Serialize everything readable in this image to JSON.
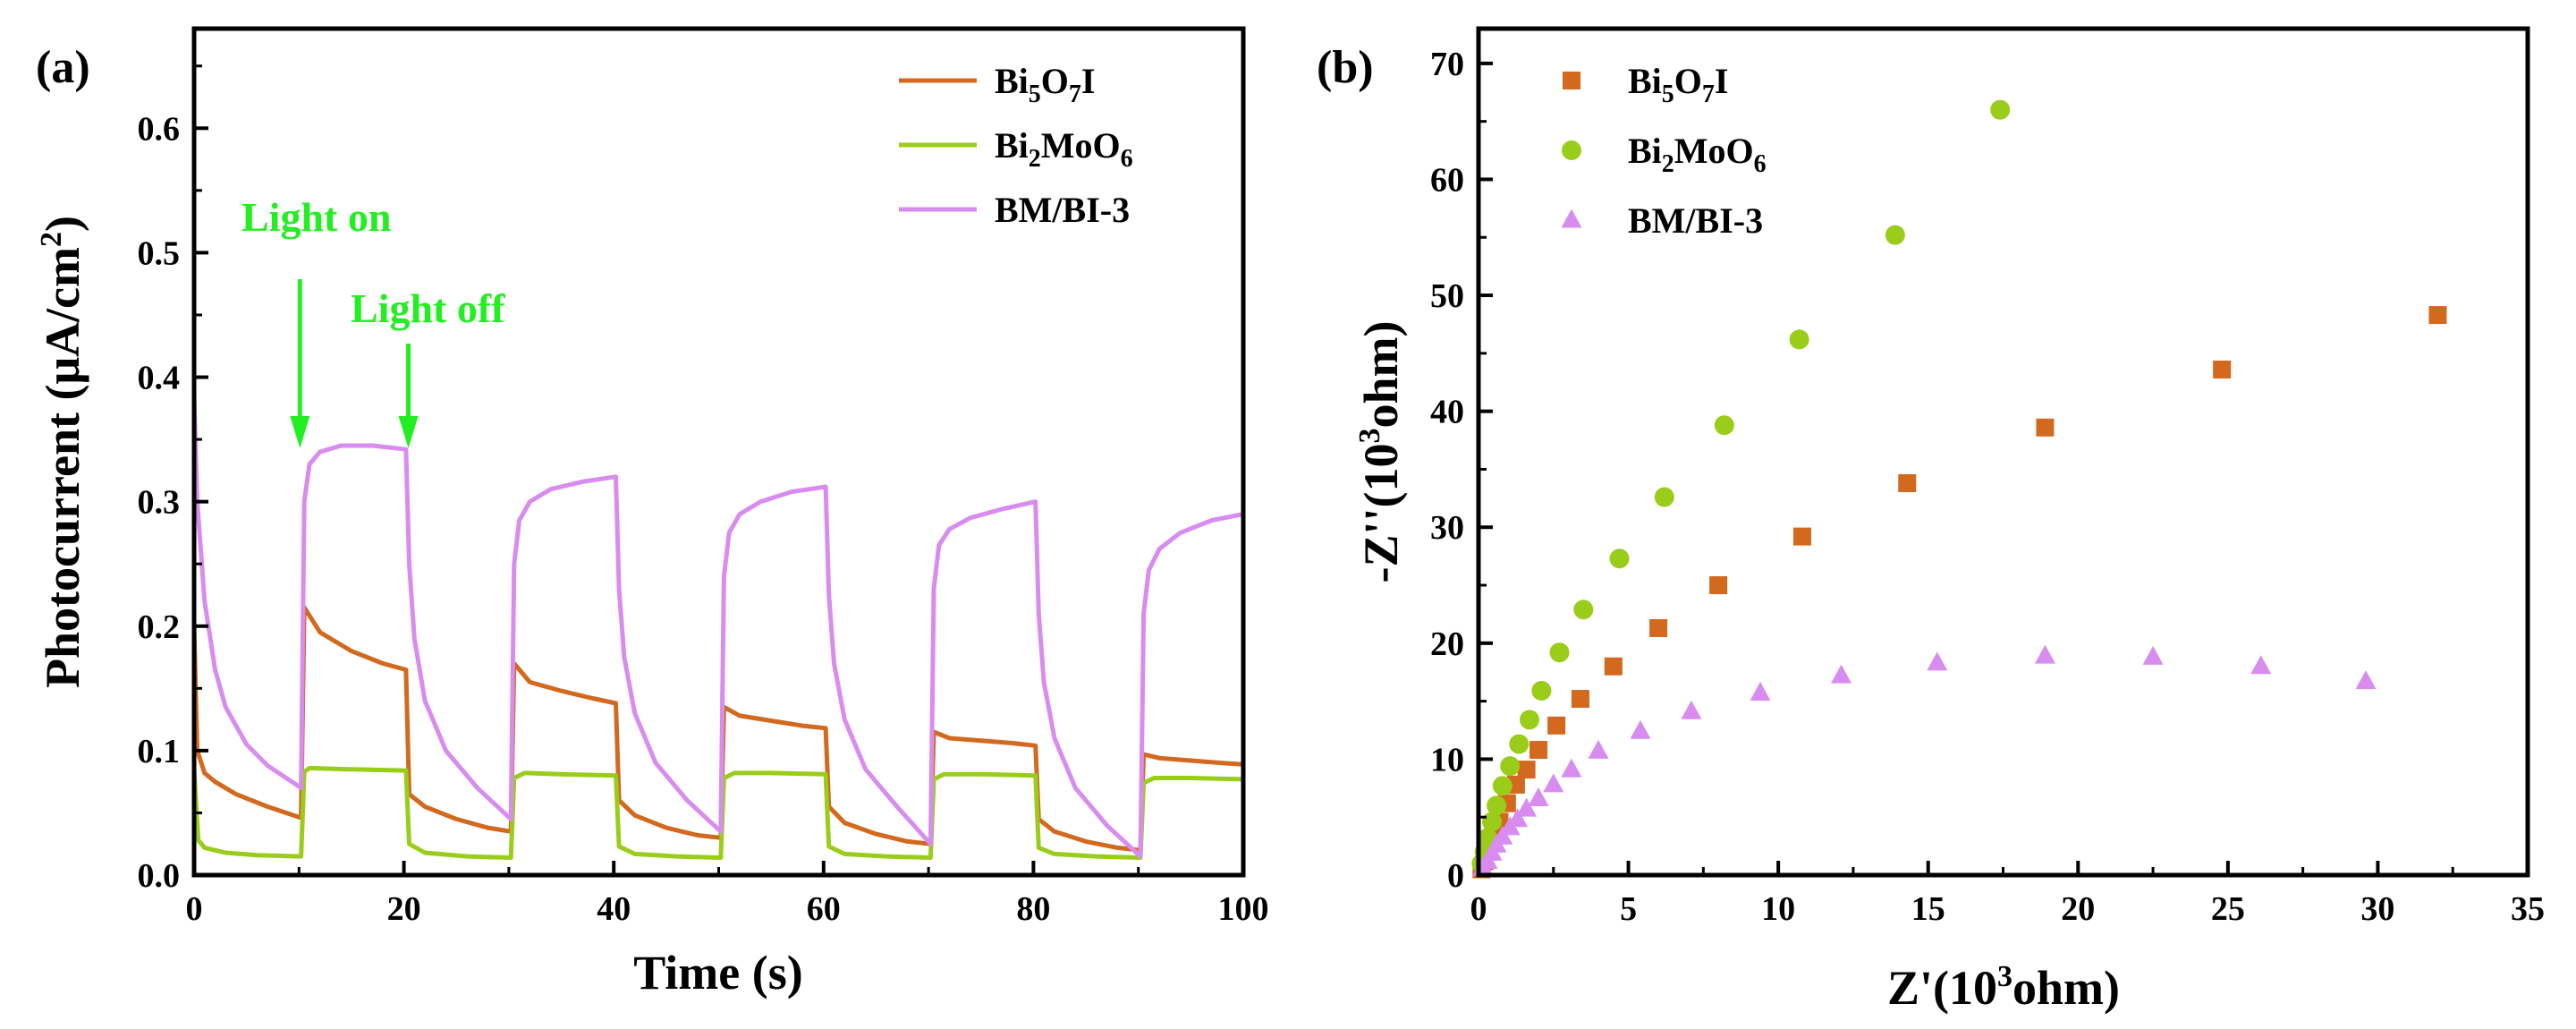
{
  "colors": {
    "bi5o7i": "#d2691e",
    "bi2moo6": "#9acd1a",
    "bmbi3": "#d88cf0",
    "annotation": "#22ee22",
    "axis": "#000000"
  },
  "chart_data": [
    {
      "panel_label": "(a)",
      "type": "line",
      "title": "",
      "xlabel": "Time (s)",
      "ylabel": "Photocurrent (μA/cm",
      "ylabel_sup": "2",
      "ylabel_close": ")",
      "xlim": [
        0,
        100
      ],
      "ylim": [
        0,
        0.68
      ],
      "xticks": [
        "0",
        "20",
        "40",
        "60",
        "80",
        "100"
      ],
      "yticks": [
        "0.0",
        "0.1",
        "0.2",
        "0.3",
        "0.4",
        "0.5",
        "0.6"
      ],
      "legend_position": "top-right",
      "annotations": [
        {
          "text": "Light on",
          "arrow_x": 10,
          "arrow_y": 0.34
        },
        {
          "text": "Light off",
          "arrow_x": 20,
          "arrow_y": 0.34
        }
      ],
      "series": [
        {
          "name": "Bi5O7I",
          "legend": {
            "base": "Bi",
            "sub1": "5",
            "mid": "O",
            "sub2": "7",
            "tail": "I"
          },
          "color_key": "bi5o7i",
          "points": [
            [
              0,
              0.2
            ],
            [
              0.3,
              0.1
            ],
            [
              1,
              0.082
            ],
            [
              2,
              0.075
            ],
            [
              4,
              0.065
            ],
            [
              7,
              0.055
            ],
            [
              10.2,
              0.046
            ],
            [
              10.5,
              0.215
            ],
            [
              12,
              0.195
            ],
            [
              15,
              0.18
            ],
            [
              18,
              0.17
            ],
            [
              20.2,
              0.165
            ],
            [
              20.5,
              0.065
            ],
            [
              22,
              0.055
            ],
            [
              25,
              0.045
            ],
            [
              28,
              0.038
            ],
            [
              30.2,
              0.035
            ],
            [
              30.5,
              0.17
            ],
            [
              32,
              0.155
            ],
            [
              35,
              0.148
            ],
            [
              38,
              0.142
            ],
            [
              40.2,
              0.138
            ],
            [
              40.5,
              0.06
            ],
            [
              42,
              0.048
            ],
            [
              45,
              0.038
            ],
            [
              48,
              0.032
            ],
            [
              50.2,
              0.03
            ],
            [
              50.5,
              0.135
            ],
            [
              52,
              0.128
            ],
            [
              55,
              0.124
            ],
            [
              58,
              0.12
            ],
            [
              60.2,
              0.118
            ],
            [
              60.5,
              0.055
            ],
            [
              62,
              0.042
            ],
            [
              65,
              0.033
            ],
            [
              68,
              0.027
            ],
            [
              70.2,
              0.025
            ],
            [
              70.5,
              0.115
            ],
            [
              72,
              0.11
            ],
            [
              75,
              0.108
            ],
            [
              78,
              0.106
            ],
            [
              80.2,
              0.104
            ],
            [
              80.5,
              0.045
            ],
            [
              82,
              0.035
            ],
            [
              85,
              0.027
            ],
            [
              88,
              0.022
            ],
            [
              90.2,
              0.02
            ],
            [
              90.5,
              0.097
            ],
            [
              92,
              0.094
            ],
            [
              95,
              0.092
            ],
            [
              98,
              0.09
            ],
            [
              100,
              0.089
            ]
          ]
        },
        {
          "name": "Bi2MoO6",
          "legend": {
            "base": "Bi",
            "sub1": "2",
            "mid": "MoO",
            "sub2": "6",
            "tail": ""
          },
          "color_key": "bi2moo6",
          "points": [
            [
              0,
              0.085
            ],
            [
              0.4,
              0.028
            ],
            [
              1,
              0.022
            ],
            [
              3,
              0.018
            ],
            [
              6,
              0.016
            ],
            [
              10.2,
              0.015
            ],
            [
              10.5,
              0.083
            ],
            [
              11,
              0.086
            ],
            [
              15,
              0.085
            ],
            [
              20.2,
              0.084
            ],
            [
              20.5,
              0.025
            ],
            [
              22,
              0.018
            ],
            [
              26,
              0.015
            ],
            [
              30.2,
              0.014
            ],
            [
              30.5,
              0.078
            ],
            [
              31.5,
              0.082
            ],
            [
              35,
              0.081
            ],
            [
              40.2,
              0.08
            ],
            [
              40.5,
              0.023
            ],
            [
              42,
              0.017
            ],
            [
              46,
              0.015
            ],
            [
              50.2,
              0.014
            ],
            [
              50.5,
              0.078
            ],
            [
              51.5,
              0.082
            ],
            [
              55,
              0.082
            ],
            [
              60.2,
              0.081
            ],
            [
              60.5,
              0.023
            ],
            [
              62,
              0.017
            ],
            [
              66,
              0.015
            ],
            [
              70.2,
              0.014
            ],
            [
              70.5,
              0.077
            ],
            [
              71.5,
              0.081
            ],
            [
              75,
              0.081
            ],
            [
              80.2,
              0.08
            ],
            [
              80.5,
              0.022
            ],
            [
              82,
              0.017
            ],
            [
              86,
              0.015
            ],
            [
              90.2,
              0.014
            ],
            [
              90.5,
              0.074
            ],
            [
              91.5,
              0.078
            ],
            [
              95,
              0.078
            ],
            [
              100,
              0.077
            ]
          ]
        },
        {
          "name": "BM/BI-3",
          "legend": {
            "base": "BM/BI-3",
            "sub1": "",
            "mid": "",
            "sub2": "",
            "tail": ""
          },
          "color_key": "bmbi3",
          "points": [
            [
              0,
              0.385
            ],
            [
              0.3,
              0.3
            ],
            [
              1,
              0.22
            ],
            [
              2,
              0.165
            ],
            [
              3,
              0.135
            ],
            [
              5,
              0.105
            ],
            [
              7,
              0.088
            ],
            [
              10.2,
              0.07
            ],
            [
              10.5,
              0.3
            ],
            [
              11,
              0.33
            ],
            [
              12,
              0.34
            ],
            [
              14,
              0.345
            ],
            [
              17,
              0.345
            ],
            [
              20.2,
              0.342
            ],
            [
              20.5,
              0.25
            ],
            [
              21,
              0.19
            ],
            [
              22,
              0.14
            ],
            [
              24,
              0.1
            ],
            [
              27,
              0.07
            ],
            [
              30.2,
              0.045
            ],
            [
              30.5,
              0.25
            ],
            [
              31,
              0.285
            ],
            [
              32,
              0.3
            ],
            [
              34,
              0.31
            ],
            [
              37,
              0.316
            ],
            [
              40.2,
              0.32
            ],
            [
              40.5,
              0.23
            ],
            [
              41,
              0.175
            ],
            [
              42,
              0.13
            ],
            [
              44,
              0.09
            ],
            [
              47,
              0.06
            ],
            [
              50.2,
              0.035
            ],
            [
              50.5,
              0.24
            ],
            [
              51,
              0.275
            ],
            [
              52,
              0.29
            ],
            [
              54,
              0.3
            ],
            [
              57,
              0.308
            ],
            [
              60.2,
              0.312
            ],
            [
              60.5,
              0.225
            ],
            [
              61,
              0.17
            ],
            [
              62,
              0.125
            ],
            [
              64,
              0.085
            ],
            [
              67,
              0.055
            ],
            [
              70.2,
              0.025
            ],
            [
              70.5,
              0.23
            ],
            [
              71,
              0.265
            ],
            [
              72,
              0.278
            ],
            [
              74,
              0.287
            ],
            [
              77,
              0.294
            ],
            [
              80.2,
              0.3
            ],
            [
              80.5,
              0.21
            ],
            [
              81,
              0.155
            ],
            [
              82,
              0.11
            ],
            [
              84,
              0.07
            ],
            [
              87,
              0.04
            ],
            [
              90.2,
              0.015
            ],
            [
              90.5,
              0.21
            ],
            [
              91,
              0.245
            ],
            [
              92,
              0.262
            ],
            [
              94,
              0.275
            ],
            [
              97,
              0.285
            ],
            [
              100,
              0.29
            ]
          ]
        }
      ]
    },
    {
      "panel_label": "(b)",
      "type": "scatter",
      "title": "",
      "xlabel": "Z'(10",
      "xlabel_sup": "3",
      "xlabel_tail": "ohm)",
      "ylabel": "-Z''(10",
      "ylabel_sup": "3",
      "ylabel_tail": "ohm)",
      "xlim": [
        0,
        35
      ],
      "ylim": [
        0,
        73
      ],
      "xticks": [
        "0",
        "5",
        "10",
        "15",
        "20",
        "25",
        "30",
        "35"
      ],
      "yticks": [
        "0",
        "10",
        "20",
        "30",
        "40",
        "50",
        "60",
        "70"
      ],
      "legend_position": "top-left",
      "series": [
        {
          "name": "Bi5O7I",
          "marker": "square",
          "legend": {
            "base": "Bi",
            "sub1": "5",
            "mid": "O",
            "sub2": "7",
            "tail": "I"
          },
          "color_key": "bi5o7i",
          "points": [
            [
              0.1,
              0.5
            ],
            [
              0.2,
              1.2
            ],
            [
              0.35,
              2.2
            ],
            [
              0.5,
              3.3
            ],
            [
              0.7,
              4.6
            ],
            [
              0.95,
              6.2
            ],
            [
              1.25,
              7.8
            ],
            [
              1.6,
              9.1
            ],
            [
              2.0,
              10.8
            ],
            [
              2.6,
              12.9
            ],
            [
              3.4,
              15.2
            ],
            [
              4.5,
              18.0
            ],
            [
              6.0,
              21.3
            ],
            [
              8.0,
              25.0
            ],
            [
              10.8,
              29.2
            ],
            [
              14.3,
              33.8
            ],
            [
              18.9,
              38.6
            ],
            [
              24.8,
              43.6
            ],
            [
              32.0,
              48.3
            ]
          ]
        },
        {
          "name": "Bi2MoO6",
          "marker": "circle",
          "legend": {
            "base": "Bi",
            "sub1": "2",
            "mid": "MoO",
            "sub2": "6",
            "tail": ""
          },
          "color_key": "bi2moo6",
          "points": [
            [
              0.1,
              1.0
            ],
            [
              0.2,
              2.0
            ],
            [
              0.3,
              3.2
            ],
            [
              0.45,
              4.6
            ],
            [
              0.6,
              6.0
            ],
            [
              0.8,
              7.7
            ],
            [
              1.05,
              9.4
            ],
            [
              1.35,
              11.3
            ],
            [
              1.7,
              13.4
            ],
            [
              2.1,
              15.9
            ],
            [
              2.7,
              19.2
            ],
            [
              3.5,
              22.9
            ],
            [
              4.7,
              27.3
            ],
            [
              6.2,
              32.6
            ],
            [
              8.2,
              38.8
            ],
            [
              10.7,
              46.2
            ],
            [
              13.9,
              55.2
            ],
            [
              17.4,
              66.0
            ]
          ]
        },
        {
          "name": "BM/BI-3",
          "marker": "triangle",
          "legend": {
            "base": "BM/BI-3",
            "sub1": "",
            "mid": "",
            "sub2": "",
            "tail": ""
          },
          "color_key": "bmbi3",
          "points": [
            [
              0.15,
              0.6
            ],
            [
              0.3,
              1.2
            ],
            [
              0.45,
              1.9
            ],
            [
              0.6,
              2.6
            ],
            [
              0.8,
              3.3
            ],
            [
              1.05,
              4.1
            ],
            [
              1.3,
              4.8
            ],
            [
              1.6,
              5.7
            ],
            [
              2.0,
              6.6
            ],
            [
              2.5,
              7.8
            ],
            [
              3.1,
              9.1
            ],
            [
              4.0,
              10.7
            ],
            [
              5.4,
              12.4
            ],
            [
              7.1,
              14.1
            ],
            [
              9.4,
              15.7
            ],
            [
              12.1,
              17.2
            ],
            [
              15.3,
              18.3
            ],
            [
              18.9,
              18.9
            ],
            [
              22.5,
              18.8
            ],
            [
              26.1,
              18.0
            ],
            [
              29.6,
              16.7
            ]
          ]
        }
      ]
    }
  ]
}
